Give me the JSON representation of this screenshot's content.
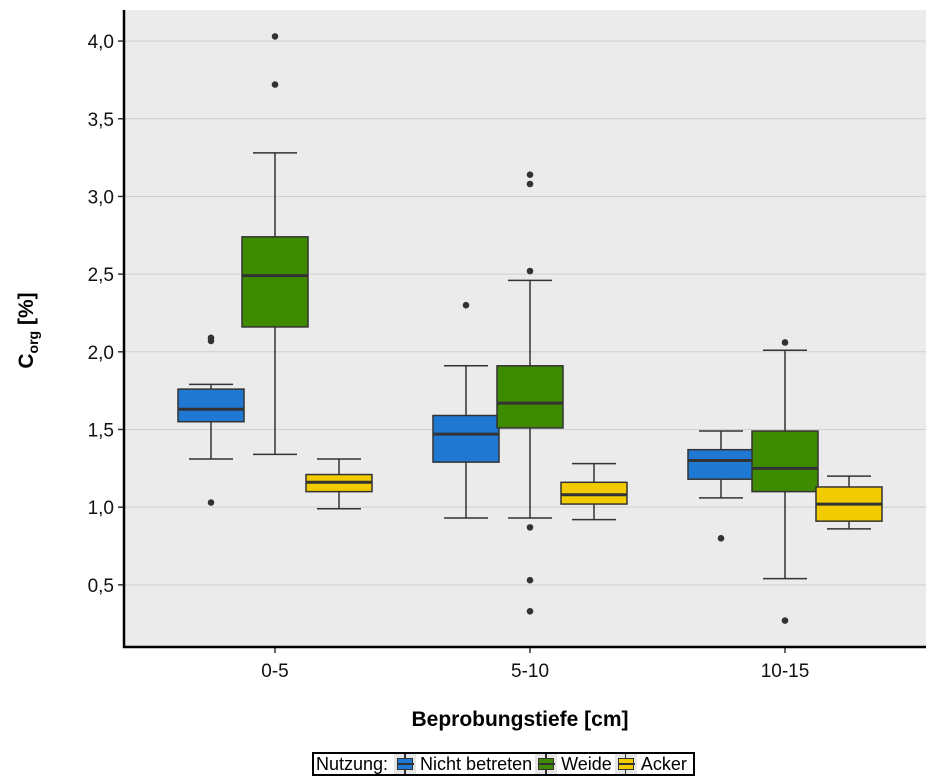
{
  "chart_data": {
    "type": "box",
    "xlabel": "Beprobungstiefe [cm]",
    "ylabel": {
      "main": "C",
      "sub": "org",
      "unit": " [%]"
    },
    "categories": [
      "0-5",
      "5-10",
      "10-15"
    ],
    "ylim": [
      0.1,
      4.2
    ],
    "yticks": [
      {
        "value": 0.5,
        "label": "0,5"
      },
      {
        "value": 1.0,
        "label": "1,0"
      },
      {
        "value": 1.5,
        "label": "1,5"
      },
      {
        "value": 2.0,
        "label": "2,0"
      },
      {
        "value": 2.5,
        "label": "2,5"
      },
      {
        "value": 3.0,
        "label": "3,0"
      },
      {
        "value": 3.5,
        "label": "3,5"
      },
      {
        "value": 4.0,
        "label": "4,0"
      }
    ],
    "grid": true,
    "legend": {
      "title": "Nutzung:",
      "position": "bottom"
    },
    "series": [
      {
        "name": "Nicht betreten",
        "color": "#1f78d1",
        "boxes": [
          {
            "whisker_low": 1.31,
            "q1": 1.55,
            "median": 1.63,
            "q3": 1.76,
            "whisker_high": 1.79,
            "outliers": [
              2.07,
              2.09,
              1.03
            ]
          },
          {
            "whisker_low": 0.93,
            "q1": 1.29,
            "median": 1.47,
            "q3": 1.59,
            "whisker_high": 1.91,
            "outliers": [
              2.3
            ]
          },
          {
            "whisker_low": 1.06,
            "q1": 1.18,
            "median": 1.3,
            "q3": 1.37,
            "whisker_high": 1.49,
            "outliers": [
              0.8
            ]
          }
        ]
      },
      {
        "name": "Weide",
        "color": "#3f8b00",
        "boxes": [
          {
            "whisker_low": 1.34,
            "q1": 2.16,
            "median": 2.49,
            "q3": 2.74,
            "whisker_high": 3.28,
            "outliers": [
              3.72,
              4.03
            ]
          },
          {
            "whisker_low": 0.93,
            "q1": 1.51,
            "median": 1.67,
            "q3": 1.91,
            "whisker_high": 2.46,
            "outliers": [
              2.52,
              3.08,
              3.14,
              0.87,
              0.53,
              0.33
            ]
          },
          {
            "whisker_low": 0.54,
            "q1": 1.1,
            "median": 1.25,
            "q3": 1.49,
            "whisker_high": 2.01,
            "outliers": [
              2.06,
              0.27
            ]
          }
        ]
      },
      {
        "name": "Acker",
        "color": "#f2cc00",
        "boxes": [
          {
            "whisker_low": 0.99,
            "q1": 1.1,
            "median": 1.16,
            "q3": 1.21,
            "whisker_high": 1.31,
            "outliers": []
          },
          {
            "whisker_low": 0.92,
            "q1": 1.02,
            "median": 1.08,
            "q3": 1.16,
            "whisker_high": 1.28,
            "outliers": []
          },
          {
            "whisker_low": 0.86,
            "q1": 0.91,
            "median": 1.02,
            "q3": 1.13,
            "whisker_high": 1.2,
            "outliers": []
          }
        ]
      }
    ]
  }
}
